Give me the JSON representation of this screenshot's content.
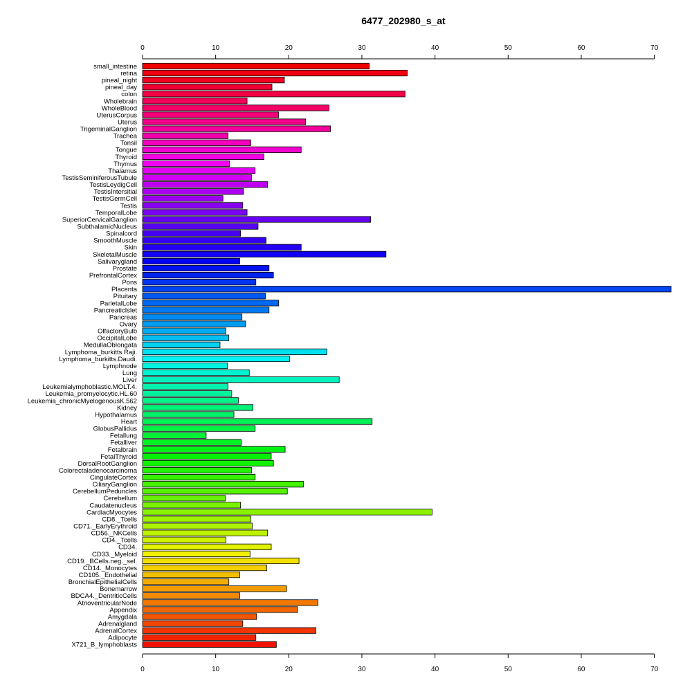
{
  "chart_data": {
    "type": "bar",
    "orientation": "horizontal",
    "title": "6477_202980_s_at",
    "xlabel": "",
    "ylabel": "",
    "xlim": [
      0,
      72.5
    ],
    "x_ticks": [
      0,
      10,
      20,
      30,
      40,
      50,
      60,
      70
    ],
    "axes": [
      "top",
      "bottom"
    ],
    "grid": false,
    "legend": "none",
    "color_scheme": "rainbow",
    "categories": [
      "small_intestine",
      "retina",
      "pineal_night",
      "pineal_day",
      "colon",
      "Wholebrain",
      "WholeBlood",
      "UterusCorpus",
      "Uterus",
      "TrigeminalGanglion",
      "Trachea",
      "Tonsil",
      "Tongue",
      "Thyroid",
      "Thymus",
      "Thalamus",
      "TestisSeminiferousTubule",
      "TestisLeydigCell",
      "TestisIntersitial",
      "TestisGermCell",
      "Testis",
      "TemporalLobe",
      "SuperiorCervicalGanglion",
      "SubthalamicNucleus",
      "Spinalcord",
      "SmoothMuscle",
      "Skin",
      "SkeletalMuscle",
      "Salivarygland",
      "Prostate",
      "PrefrontalCortex",
      "Pons",
      "Placenta",
      "Pituitary",
      "ParietalLobe",
      "PancreaticIslet",
      "Pancreas",
      "Ovary",
      "OlfactoryBulb",
      "OccipitalLobe",
      "MedullaOblongata",
      "Lymphoma_burkitts.Raji.",
      "Lymphoma_burkitts.Daudi.",
      "Lymphnode",
      "Lung",
      "Liver",
      "Leukemialymphoblastic.MOLT.4.",
      "Leukemia_promyelocytic.HL.60",
      "Leukemia_chronicMyelogenousK.562",
      "Kidney",
      "Hypothalamus",
      "Heart",
      "GlobusPallidus",
      "Fetallung",
      "Fetalliver",
      "Fetalbrain",
      "FetalThyroid",
      "DorsalRootGanglion",
      "Colorectaladenocarcinoma",
      "CingulateCortex",
      "CiliaryGanglion",
      "CerebellumPeduncles",
      "Cerebellum",
      "Caudatenucleus",
      "CardiacMyocytes",
      "CD8._Tcells",
      "CD71._EarlyErythroid",
      "CD56._NKCells",
      "CD4._Tcells",
      "CD34.",
      "CD33._Myeloid",
      "CD19._BCells.neg._sel.",
      "CD14._Monocytes",
      "CD105._Endothelial",
      "BronchialEpithelialCells",
      "Bonemarrow",
      "BDCA4._DentriticCells",
      "AtrioventricularNode",
      "Appendix",
      "Amygdala",
      "Adrenalgland",
      "AdrenalCortex",
      "Adipocyte",
      "X721_B_lymphoblasts"
    ],
    "values": [
      31.0,
      36.2,
      19.4,
      17.7,
      35.9,
      14.3,
      25.5,
      18.6,
      22.3,
      25.7,
      11.7,
      14.8,
      21.7,
      16.6,
      11.9,
      15.4,
      14.9,
      17.1,
      13.8,
      11.0,
      13.7,
      14.3,
      31.2,
      15.8,
      13.4,
      16.9,
      21.7,
      33.3,
      13.3,
      17.3,
      17.9,
      15.5,
      72.3,
      16.8,
      18.6,
      17.3,
      13.6,
      14.1,
      11.4,
      11.8,
      10.6,
      25.2,
      20.1,
      11.6,
      14.6,
      26.9,
      11.7,
      12.2,
      13.1,
      15.1,
      12.5,
      31.4,
      15.4,
      8.7,
      13.5,
      19.5,
      17.6,
      17.9,
      14.9,
      15.4,
      22.0,
      19.8,
      11.3,
      13.4,
      39.6,
      14.8,
      15.0,
      17.1,
      11.4,
      17.6,
      14.7,
      21.4,
      17.0,
      13.3,
      11.8,
      19.7,
      13.3,
      24.0,
      21.2,
      15.6,
      13.7,
      23.7,
      15.5,
      18.3
    ]
  }
}
